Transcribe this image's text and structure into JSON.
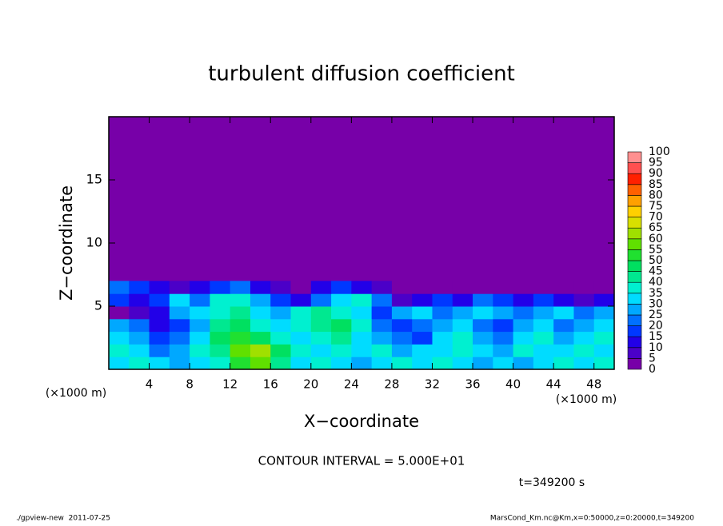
{
  "chart_data": {
    "type": "heatmap",
    "title": "turbulent diffusion coefficient",
    "xlabel": "X−coordinate",
    "ylabel": "Z−coordinate",
    "x_units": "(×1000 m)",
    "y_units": "(×1000 m)",
    "contour_interval": "CONTOUR INTERVAL = 5.000E+01",
    "time_label": "t=349200 s",
    "footer_left": "./gpview-new  2011-07-25",
    "footer_right": "MarsCond_Km.nc@Km,x=0:50000,z=0:20000,t=349200",
    "xlim": [
      0,
      50
    ],
    "ylim": [
      0,
      20
    ],
    "xticks": [
      4,
      8,
      12,
      16,
      20,
      24,
      28,
      32,
      36,
      40,
      44,
      48
    ],
    "yticks": [
      5,
      10,
      15
    ],
    "x": [
      1,
      3,
      5,
      7,
      9,
      11,
      13,
      15,
      17,
      19,
      21,
      23,
      25,
      27,
      29,
      31,
      33,
      35,
      37,
      39,
      41,
      43,
      45,
      47,
      49
    ],
    "z": [
      0.5,
      1.5,
      2.5,
      3.5,
      4.5,
      5.5,
      6.5
    ],
    "values": [
      [
        30,
        35,
        30,
        25,
        30,
        35,
        50,
        55,
        40,
        30,
        35,
        30,
        25,
        30,
        35,
        30,
        35,
        30,
        25,
        30,
        25,
        30,
        35,
        30,
        35
      ],
      [
        35,
        30,
        20,
        25,
        35,
        40,
        55,
        60,
        45,
        35,
        30,
        35,
        30,
        35,
        25,
        30,
        30,
        35,
        30,
        25,
        35,
        30,
        30,
        35,
        30
      ],
      [
        30,
        25,
        15,
        20,
        30,
        45,
        50,
        45,
        35,
        30,
        35,
        40,
        30,
        25,
        20,
        15,
        30,
        35,
        25,
        20,
        30,
        35,
        25,
        30,
        35
      ],
      [
        25,
        20,
        10,
        15,
        25,
        40,
        45,
        35,
        30,
        35,
        40,
        45,
        35,
        20,
        15,
        20,
        25,
        30,
        20,
        15,
        25,
        30,
        20,
        25,
        30
      ],
      [
        0,
        5,
        10,
        25,
        30,
        35,
        40,
        30,
        25,
        35,
        40,
        35,
        30,
        15,
        25,
        30,
        20,
        25,
        30,
        25,
        20,
        25,
        30,
        20,
        25
      ],
      [
        15,
        10,
        15,
        30,
        20,
        35,
        35,
        25,
        15,
        10,
        20,
        30,
        35,
        20,
        5,
        10,
        15,
        10,
        20,
        15,
        10,
        15,
        10,
        5,
        10
      ],
      [
        20,
        15,
        10,
        5,
        10,
        15,
        20,
        10,
        5,
        0,
        10,
        15,
        10,
        5,
        0,
        0,
        0,
        0,
        0,
        0,
        0,
        0,
        0,
        0,
        0
      ]
    ],
    "colorbar": {
      "levels": [
        0,
        5,
        10,
        15,
        20,
        25,
        30,
        35,
        40,
        45,
        50,
        55,
        60,
        65,
        70,
        75,
        80,
        85,
        90,
        95,
        100
      ],
      "colors": [
        "#7700a8",
        "#4b00c8",
        "#2200e8",
        "#0038ff",
        "#0070ff",
        "#00a8ff",
        "#00dcff",
        "#00f0d0",
        "#00e890",
        "#00e060",
        "#20e030",
        "#60e000",
        "#a0e000",
        "#d8e000",
        "#ffd000",
        "#ffa000",
        "#ff6000",
        "#ff2000",
        "#ff5050",
        "#ff9090"
      ]
    }
  }
}
